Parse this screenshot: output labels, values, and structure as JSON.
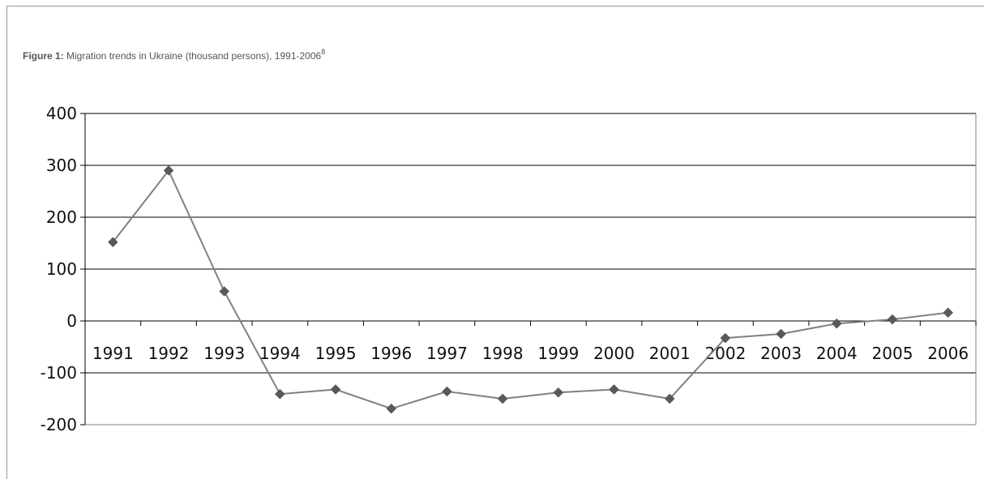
{
  "figure": {
    "label": "Figure 1:",
    "text": " Migration trends in Ukraine (thousand persons), 1991-2006",
    "footnote": "8"
  },
  "chart_data": {
    "type": "line",
    "title": "",
    "xlabel": "",
    "ylabel": "",
    "x": [
      "1991",
      "1992",
      "1993",
      "1994",
      "1995",
      "1996",
      "1997",
      "1998",
      "1999",
      "2000",
      "2001",
      "2002",
      "2003",
      "2004",
      "2005",
      "2006"
    ],
    "series": [
      {
        "values": [
          152,
          290,
          57,
          -141,
          -132,
          -169,
          -136,
          -150,
          -138,
          -132,
          -150,
          -33,
          -25,
          -5,
          3,
          16
        ],
        "color": "#808080",
        "marker": "diamond",
        "marker_color": "#595959"
      }
    ],
    "ylim": [
      -200,
      400
    ],
    "yticks": [
      -200,
      -100,
      0,
      100,
      200,
      300,
      400
    ],
    "grid": true,
    "legend": "none"
  }
}
